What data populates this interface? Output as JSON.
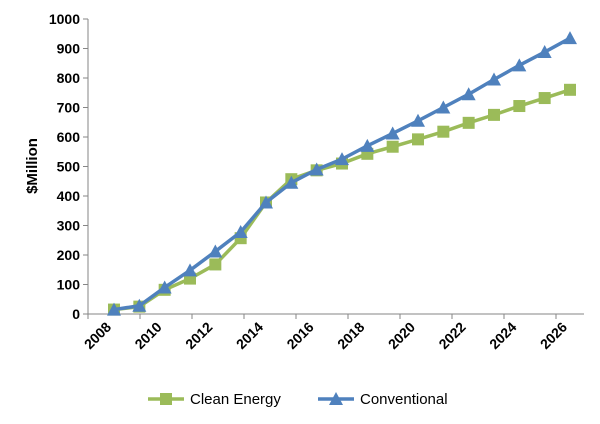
{
  "chart_data": {
    "type": "line",
    "title": "",
    "xlabel": "",
    "ylabel": "$Million",
    "ylim": [
      0,
      1000
    ],
    "yticks": [
      0,
      100,
      200,
      300,
      400,
      500,
      600,
      700,
      800,
      900,
      1000
    ],
    "x_tick_labels": [
      "2008",
      "2010",
      "2012",
      "2014",
      "2016",
      "2018",
      "2020",
      "2022",
      "2024",
      "2026"
    ],
    "x": [
      2008,
      2009,
      2010,
      2011,
      2012,
      2013,
      2014,
      2015,
      2016,
      2017,
      2018,
      2019,
      2020,
      2021,
      2022,
      2023,
      2024,
      2025,
      2026
    ],
    "grid": false,
    "legend_position": "bottom",
    "series": [
      {
        "name": "Clean Energy",
        "marker": "square",
        "color": "#9bbb59",
        "values": [
          15,
          25,
          82,
          120,
          168,
          257,
          378,
          457,
          487,
          510,
          543,
          567,
          592,
          618,
          648,
          675,
          705,
          732,
          760
        ]
      },
      {
        "name": "Conventional",
        "marker": "triangle",
        "color": "#4f81bd",
        "values": [
          15,
          28,
          90,
          148,
          212,
          278,
          378,
          445,
          490,
          525,
          570,
          612,
          655,
          700,
          745,
          795,
          843,
          888,
          935
        ]
      }
    ]
  }
}
